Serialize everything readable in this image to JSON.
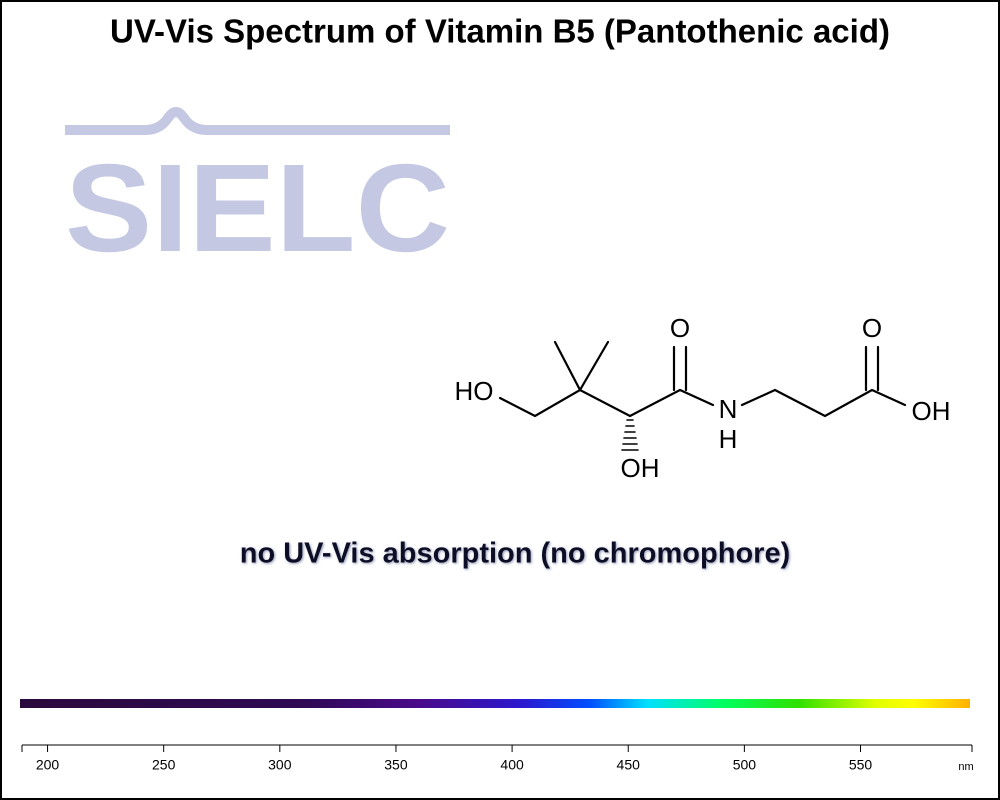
{
  "chart_data": {
    "type": "spectrum",
    "title": "UV-Vis Spectrum of Vitamin B5 (Pantothenic acid)",
    "annotation": "no UV-Vis absorption (no chromophore)",
    "xlabel": "nm",
    "xlim": [
      189,
      598
    ],
    "xticks": [
      200,
      250,
      300,
      350,
      400,
      450,
      500,
      550
    ]
  },
  "logo": "SIELC",
  "molecule": {
    "labels": [
      "HO",
      "OH",
      "O",
      "N",
      "H",
      "O",
      "OH"
    ]
  }
}
